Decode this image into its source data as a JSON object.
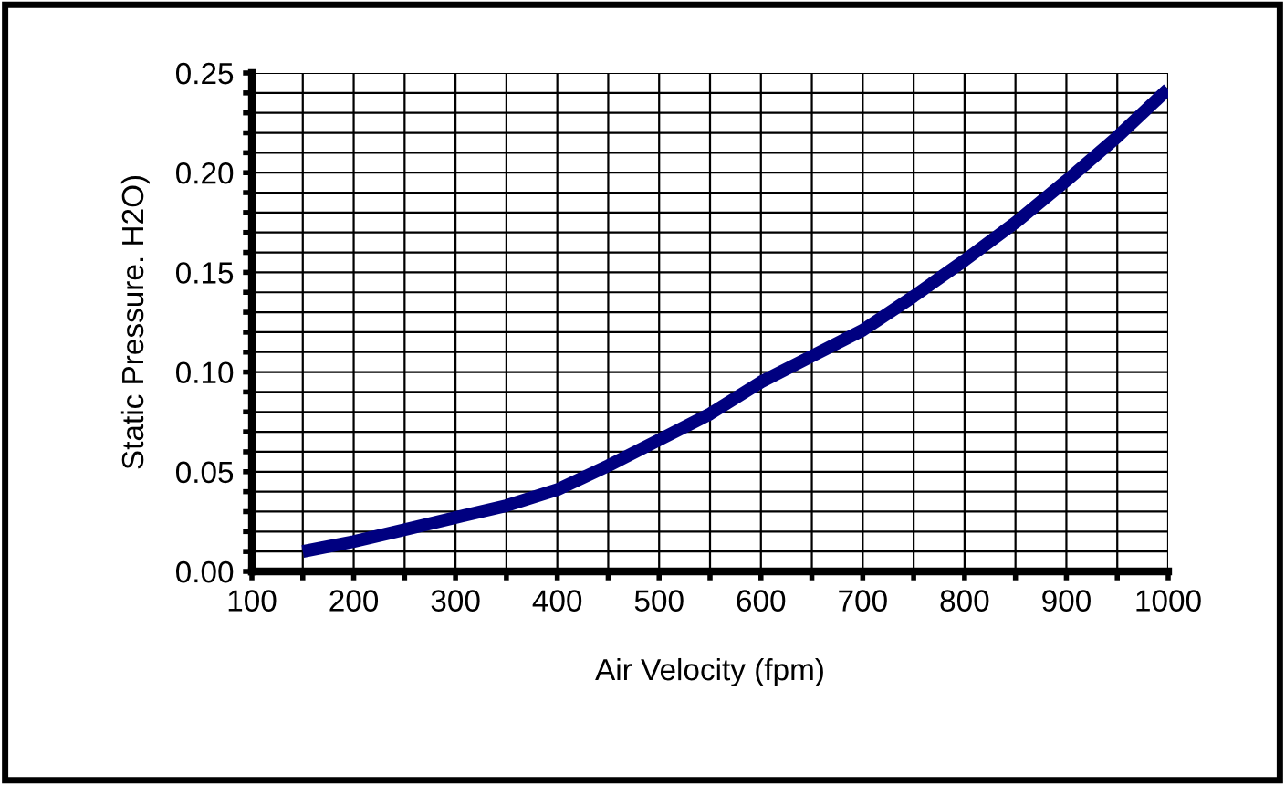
{
  "chart_data": {
    "type": "line",
    "xlabel": "Air Velocity (fpm)",
    "ylabel": "Static Pressure. H2O)",
    "x": [
      150,
      200,
      250,
      300,
      350,
      400,
      450,
      500,
      550,
      600,
      650,
      700,
      750,
      800,
      850,
      900,
      950,
      1000
    ],
    "series": [
      {
        "color": "#000080",
        "values": [
          0.01,
          0.015,
          0.021,
          0.027,
          0.033,
          0.041,
          0.053,
          0.066,
          0.079,
          0.095,
          0.108,
          0.121,
          0.138,
          0.156,
          0.175,
          0.196,
          0.218,
          0.242
        ]
      }
    ],
    "xlim": [
      100,
      1000
    ],
    "xticks": [
      100,
      {
        "value": 150,
        "label": null
      },
      200,
      {
        "value": 250,
        "label": null
      },
      300,
      {
        "value": 350,
        "label": null
      },
      400,
      {
        "value": 450,
        "label": null
      },
      500,
      {
        "value": 550,
        "label": null
      },
      600,
      {
        "value": 650,
        "label": null
      },
      700,
      {
        "value": 750,
        "label": null
      },
      800,
      {
        "value": 850,
        "label": null
      },
      900,
      {
        "value": 950,
        "label": null
      },
      1000
    ],
    "ylim": [
      0,
      0.25
    ],
    "yticks": [
      {
        "value": 0,
        "label": "0.00"
      },
      {
        "value": 0.01,
        "label": null
      },
      {
        "value": 0.02,
        "label": null
      },
      {
        "value": 0.03,
        "label": null
      },
      {
        "value": 0.04,
        "label": null
      },
      {
        "value": 0.05,
        "label": "0.05"
      },
      {
        "value": 0.06,
        "label": null
      },
      {
        "value": 0.07,
        "label": null
      },
      {
        "value": 0.08,
        "label": null
      },
      {
        "value": 0.09,
        "label": null
      },
      {
        "value": 0.1,
        "label": "0.10"
      },
      {
        "value": 0.11,
        "label": null
      },
      {
        "value": 0.12,
        "label": null
      },
      {
        "value": 0.13,
        "label": null
      },
      {
        "value": 0.14,
        "label": null
      },
      {
        "value": 0.15,
        "label": "0.15"
      },
      {
        "value": 0.16,
        "label": null
      },
      {
        "value": 0.17,
        "label": null
      },
      {
        "value": 0.18,
        "label": null
      },
      {
        "value": 0.19,
        "label": null
      },
      {
        "value": 0.2,
        "label": "0.20"
      },
      {
        "value": 0.21,
        "label": null
      },
      {
        "value": 0.22,
        "label": null
      },
      {
        "value": 0.23,
        "label": null
      },
      {
        "value": 0.24,
        "label": null
      },
      {
        "value": 0.25,
        "label": "0.25"
      }
    ],
    "grid": true,
    "marker": "none",
    "line_style": "solid",
    "legend": false
  }
}
